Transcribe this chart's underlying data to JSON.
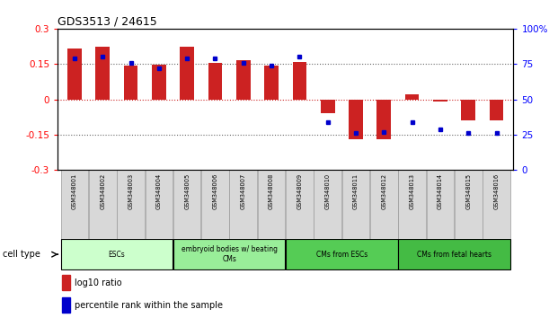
{
  "title": "GDS3513 / 24615",
  "samples": [
    "GSM348001",
    "GSM348002",
    "GSM348003",
    "GSM348004",
    "GSM348005",
    "GSM348006",
    "GSM348007",
    "GSM348008",
    "GSM348009",
    "GSM348010",
    "GSM348011",
    "GSM348012",
    "GSM348013",
    "GSM348014",
    "GSM348015",
    "GSM348016"
  ],
  "log10_ratio": [
    0.215,
    0.225,
    0.145,
    0.148,
    0.225,
    0.153,
    0.168,
    0.143,
    0.16,
    -0.06,
    -0.17,
    -0.17,
    0.02,
    -0.01,
    -0.09,
    -0.09
  ],
  "percentile_rank": [
    79,
    80,
    76,
    72,
    79,
    79,
    76,
    74,
    80,
    34,
    26,
    27,
    34,
    29,
    26,
    26
  ],
  "cell_types": [
    {
      "label": "ESCs",
      "start": 0,
      "end": 4,
      "color": "#ccffcc"
    },
    {
      "label": "embryoid bodies w/ beating\nCMs",
      "start": 4,
      "end": 8,
      "color": "#99ee99"
    },
    {
      "label": "CMs from ESCs",
      "start": 8,
      "end": 12,
      "color": "#55cc55"
    },
    {
      "label": "CMs from fetal hearts",
      "start": 12,
      "end": 16,
      "color": "#44bb44"
    }
  ],
  "ylim_left": [
    -0.3,
    0.3
  ],
  "ylim_right": [
    0,
    100
  ],
  "yticks_left": [
    -0.3,
    -0.15,
    0,
    0.15,
    0.3
  ],
  "yticks_right": [
    0,
    25,
    50,
    75,
    100
  ],
  "bar_color": "#cc2222",
  "dot_color": "#0000cc",
  "hline_color": "#cc2222",
  "legend_bar_label": "log10 ratio",
  "legend_dot_label": "percentile rank within the sample",
  "bar_width": 0.5
}
